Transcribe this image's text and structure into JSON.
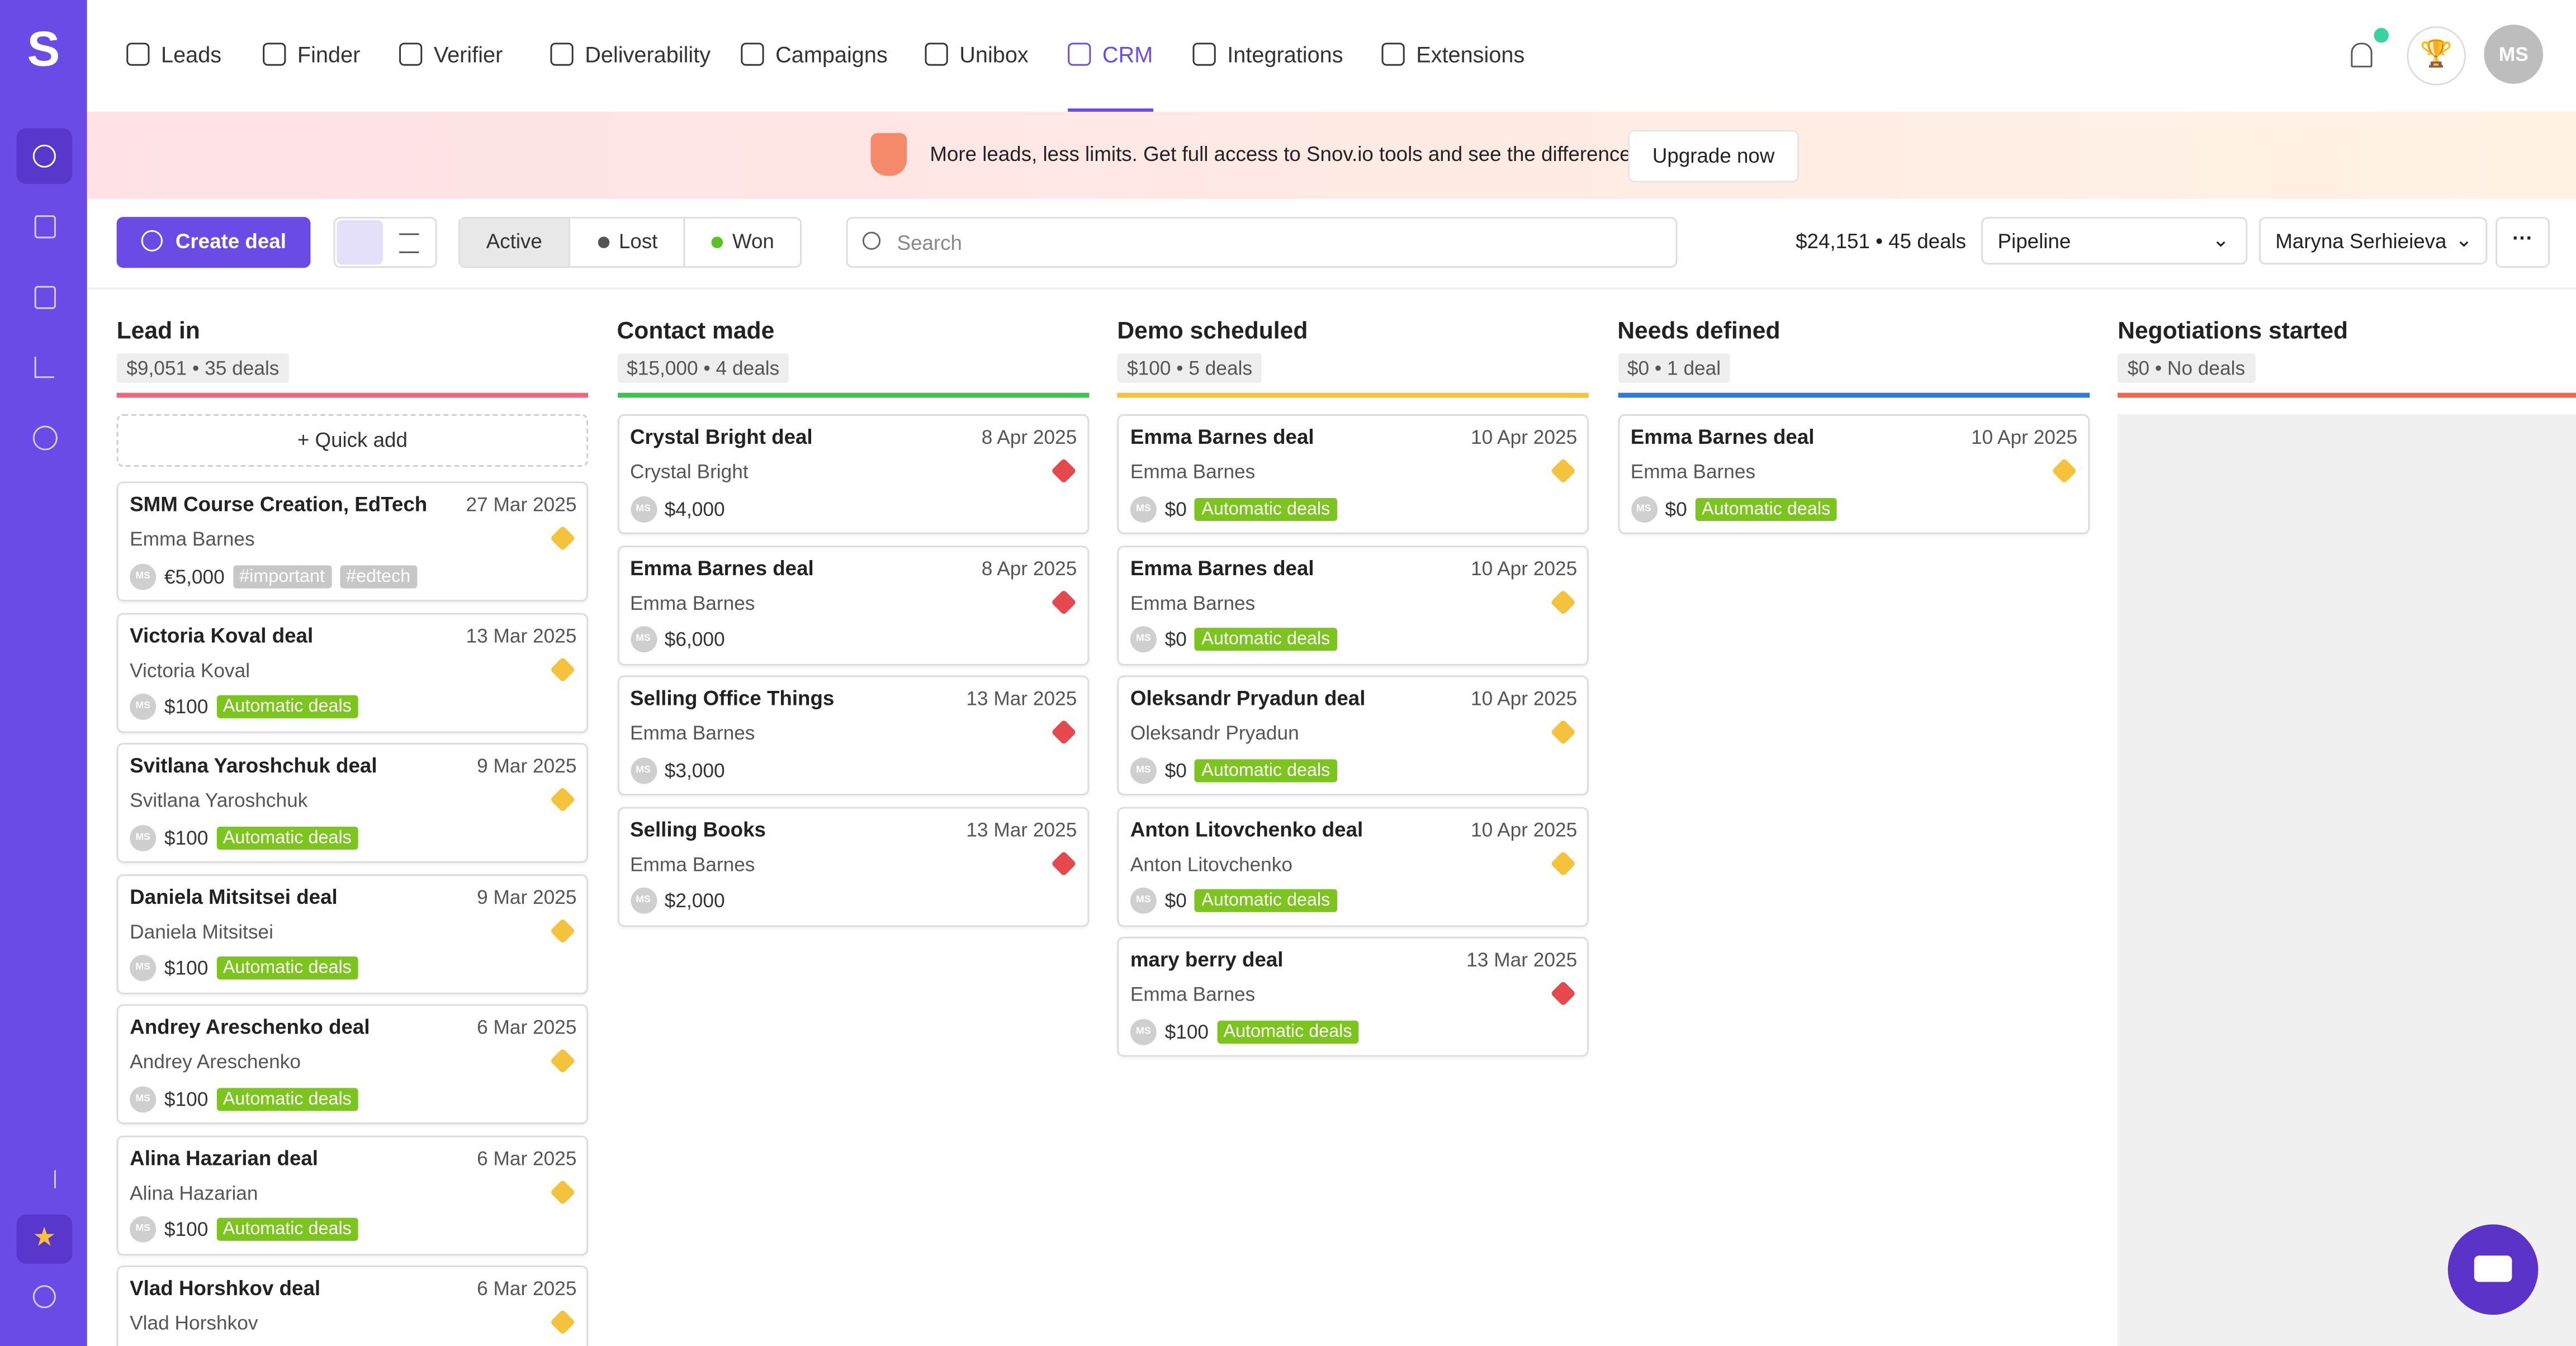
{
  "nav": {
    "logo": "S",
    "items": [
      "Leads",
      "Finder",
      "Verifier",
      "Deliverability",
      "Campaigns",
      "Unibox",
      "CRM",
      "Integrations",
      "Extensions"
    ],
    "active": "CRM",
    "avatar": "MS"
  },
  "banner": {
    "text": "More leads, less limits. Get full access to Snov.io tools and see the difference.",
    "button": "Upgrade now"
  },
  "toolbar": {
    "create": "Create deal",
    "filters": [
      {
        "label": "Active",
        "dot": null
      },
      {
        "label": "Lost",
        "dot": "#555555"
      },
      {
        "label": "Won",
        "dot": "#58c322"
      }
    ],
    "search": "Search",
    "summary": "$24,151 • 45 deals",
    "pipeline": "Pipeline",
    "user": "Maryna Serhieieva"
  },
  "quick_add": "Quick add",
  "card_avatar": "MS",
  "columns": [
    {
      "name": "Lead in",
      "summary": "$9,051 • 35 deals",
      "color": "#f0677a",
      "cards": [
        {
          "title": "SMM Course Creation, EdTech",
          "date": "27 Mar 2025",
          "contact": "Emma Barnes",
          "amount": "€5,000",
          "flag_color": "#f5c33b",
          "tags": [
            {
              "text": "#important",
              "color": "#c7c7c7"
            },
            {
              "text": "#edtech",
              "color": "#c7c7c7"
            }
          ]
        },
        {
          "title": "Victoria Koval deal",
          "date": "13 Mar 2025",
          "contact": "Victoria Koval",
          "amount": "$100",
          "flag_color": "#f5c33b",
          "tags": [
            {
              "text": "Automatic deals",
              "color": "#7cc41e"
            }
          ]
        },
        {
          "title": "Svitlana Yaroshchuk deal",
          "date": "9 Mar 2025",
          "contact": "Svitlana Yaroshchuk",
          "amount": "$100",
          "flag_color": "#f5c33b",
          "tags": [
            {
              "text": "Automatic deals",
              "color": "#7cc41e"
            }
          ]
        },
        {
          "title": "Daniela Mitsitsei deal",
          "date": "9 Mar 2025",
          "contact": "Daniela Mitsitsei",
          "amount": "$100",
          "flag_color": "#f5c33b",
          "tags": [
            {
              "text": "Automatic deals",
              "color": "#7cc41e"
            }
          ]
        },
        {
          "title": "Andrey Areschenko deal",
          "date": "6 Mar 2025",
          "contact": "Andrey Areschenko",
          "amount": "$100",
          "flag_color": "#f5c33b",
          "tags": [
            {
              "text": "Automatic deals",
              "color": "#7cc41e"
            }
          ]
        },
        {
          "title": "Alina Hazarian deal",
          "date": "6 Mar 2025",
          "contact": "Alina Hazarian",
          "amount": "$100",
          "flag_color": "#f5c33b",
          "tags": [
            {
              "text": "Automatic deals",
              "color": "#7cc41e"
            }
          ]
        },
        {
          "title": "Vlad Horshkov deal",
          "date": "6 Mar 2025",
          "contact": "Vlad Horshkov",
          "amount": null,
          "flag_color": "#f5c33b",
          "tags": []
        }
      ]
    },
    {
      "name": "Contact made",
      "summary": "$15,000 • 4 deals",
      "color": "#3ec24f",
      "cards": [
        {
          "title": "Crystal Bright deal",
          "date": "8 Apr 2025",
          "contact": "Crystal Bright",
          "amount": "$4,000",
          "flag_color": "#e5484d",
          "tags": []
        },
        {
          "title": "Emma Barnes deal",
          "date": "8 Apr 2025",
          "contact": "Emma Barnes",
          "amount": "$6,000",
          "flag_color": "#e5484d",
          "tags": []
        },
        {
          "title": "Selling Office Things",
          "date": "13 Mar 2025",
          "contact": "Emma Barnes",
          "amount": "$3,000",
          "flag_color": "#e5484d",
          "tags": []
        },
        {
          "title": "Selling Books",
          "date": "13 Mar 2025",
          "contact": "Emma Barnes",
          "amount": "$2,000",
          "flag_color": "#e5484d",
          "tags": []
        }
      ]
    },
    {
      "name": "Demo scheduled",
      "summary": "$100 • 5 deals",
      "color": "#f5c33b",
      "cards": [
        {
          "title": "Emma Barnes deal",
          "date": "10 Apr 2025",
          "contact": "Emma Barnes",
          "amount": "$0",
          "flag_color": "#f5c33b",
          "tags": [
            {
              "text": "Automatic deals",
              "color": "#7cc41e"
            }
          ]
        },
        {
          "title": "Emma Barnes deal",
          "date": "10 Apr 2025",
          "contact": "Emma Barnes",
          "amount": "$0",
          "flag_color": "#f5c33b",
          "tags": [
            {
              "text": "Automatic deals",
              "color": "#7cc41e"
            }
          ]
        },
        {
          "title": "Oleksandr Pryadun deal",
          "date": "10 Apr 2025",
          "contact": "Oleksandr Pryadun",
          "amount": "$0",
          "flag_color": "#f5c33b",
          "tags": [
            {
              "text": "Automatic deals",
              "color": "#7cc41e"
            }
          ]
        },
        {
          "title": "Anton Litovchenko deal",
          "date": "10 Apr 2025",
          "contact": "Anton Litovchenko",
          "amount": "$0",
          "flag_color": "#f5c33b",
          "tags": [
            {
              "text": "Automatic deals",
              "color": "#7cc41e"
            }
          ]
        },
        {
          "title": "mary berry deal",
          "date": "13 Mar 2025",
          "contact": "Emma Barnes",
          "amount": "$100",
          "flag_color": "#e5484d",
          "tags": [
            {
              "text": "Automatic deals",
              "color": "#7cc41e"
            }
          ]
        }
      ]
    },
    {
      "name": "Needs defined",
      "summary": "$0 • 1 deal",
      "color": "#2f7bd8",
      "cards": [
        {
          "title": "Emma Barnes deal",
          "date": "10 Apr 2025",
          "contact": "Emma Barnes",
          "amount": "$0",
          "flag_color": "#f5c33b",
          "tags": [
            {
              "text": "Automatic deals",
              "color": "#7cc41e"
            }
          ]
        }
      ]
    },
    {
      "name": "Negotiations started",
      "summary": "$0 • No deals",
      "color": "#f0674a",
      "cards": []
    }
  ]
}
